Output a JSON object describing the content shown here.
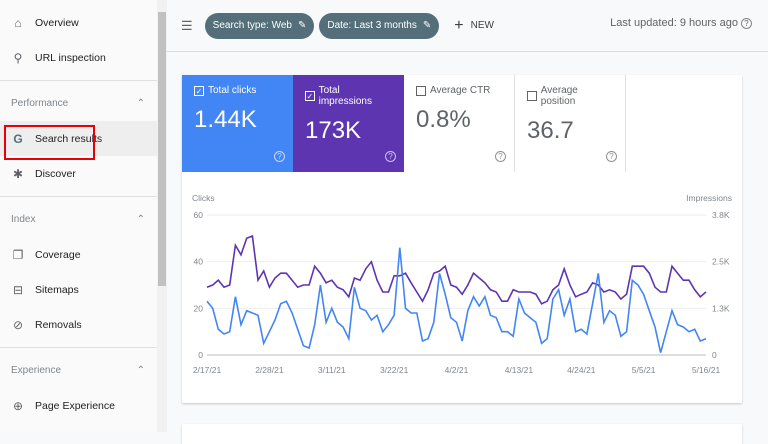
{
  "sidebar": {
    "top": [
      {
        "label": "Overview",
        "icon": "home-icon"
      },
      {
        "label": "URL inspection",
        "icon": "search-icon"
      }
    ],
    "sections": [
      {
        "title": "Performance",
        "items": [
          {
            "label": "Search results",
            "icon": "google-g-icon",
            "active": true
          },
          {
            "label": "Discover",
            "icon": "asterisk-icon"
          }
        ]
      },
      {
        "title": "Index",
        "items": [
          {
            "label": "Coverage",
            "icon": "pages-icon"
          },
          {
            "label": "Sitemaps",
            "icon": "sitemap-icon"
          },
          {
            "label": "Removals",
            "icon": "eye-off-icon"
          }
        ]
      },
      {
        "title": "Experience",
        "items": [
          {
            "label": "Page Experience",
            "icon": "plus-circle-icon"
          }
        ]
      }
    ]
  },
  "toolbar": {
    "chips": [
      "Search type: Web",
      "Date: Last 3 months"
    ],
    "new_label": "NEW",
    "last_updated": "Last updated: 9 hours ago"
  },
  "metrics": [
    {
      "label": "Total clicks",
      "value": "1.44K",
      "checked": true,
      "color": "#4285f4"
    },
    {
      "label": "Total impressions",
      "value": "173K",
      "checked": true,
      "color": "#5e35b1"
    },
    {
      "label": "Average CTR",
      "value": "0.8%",
      "checked": false
    },
    {
      "label": "Average position",
      "value": "36.7",
      "checked": false
    }
  ],
  "chart_data": {
    "type": "line",
    "ylabel_left": "Clicks",
    "ylabel_right": "Impressions",
    "y_left_ticks": [
      "0",
      "20",
      "40",
      "60"
    ],
    "y_right_ticks": [
      "0",
      "1.3K",
      "2.5K",
      "3.8K"
    ],
    "ylim_left": [
      0,
      60
    ],
    "ylim_right": [
      0,
      3800
    ],
    "x_ticks": [
      "2/17/21",
      "2/28/21",
      "3/11/21",
      "3/22/21",
      "4/2/21",
      "4/13/21",
      "4/24/21",
      "5/5/21",
      "5/16/21"
    ],
    "x_range": [
      "2/17/21",
      "5/16/21"
    ],
    "grid": true,
    "series": [
      {
        "name": "Clicks",
        "axis": "left",
        "color": "#4285f4",
        "values": [
          23,
          20,
          11,
          9,
          10,
          25,
          13,
          19,
          18,
          17,
          5,
          10,
          15,
          22,
          23,
          18,
          11,
          4,
          3,
          13,
          30,
          14,
          20,
          14,
          12,
          7,
          29,
          20,
          19,
          15,
          17,
          10,
          13,
          17,
          46,
          20,
          18,
          18,
          6,
          7,
          14,
          35,
          26,
          16,
          14,
          6,
          19,
          25,
          21,
          25,
          17,
          16,
          10,
          10,
          8,
          24,
          18,
          16,
          14,
          5,
          7,
          24,
          28,
          17,
          24,
          10,
          11,
          9,
          22,
          35,
          14,
          19,
          17,
          8,
          10,
          32,
          30,
          26,
          19,
          12,
          1,
          10,
          19,
          13,
          12,
          10,
          11,
          6,
          7
        ]
      },
      {
        "name": "Impressions",
        "axis": "right",
        "color": "#5e35b1",
        "values": [
          1840,
          1900,
          2030,
          1840,
          1900,
          2980,
          2720,
          3170,
          3230,
          2030,
          2280,
          1840,
          2090,
          2220,
          2220,
          2030,
          1840,
          1900,
          1900,
          2410,
          2220,
          1960,
          2030,
          1840,
          1770,
          1580,
          2090,
          2030,
          2340,
          2530,
          2030,
          1710,
          1710,
          2150,
          2150,
          2220,
          1960,
          1710,
          1460,
          1770,
          2220,
          2280,
          2410,
          1900,
          1840,
          1650,
          1900,
          2220,
          2090,
          1960,
          1770,
          1710,
          1460,
          1460,
          1770,
          1710,
          1710,
          1710,
          1650,
          1390,
          1460,
          1770,
          1900,
          2340,
          1900,
          1580,
          1650,
          1710,
          1960,
          1900,
          1710,
          1770,
          1710,
          1520,
          1650,
          2410,
          2410,
          2410,
          2220,
          1840,
          1710,
          1710,
          2410,
          2220,
          2030,
          2030,
          1770,
          1580,
          1710
        ]
      }
    ]
  }
}
